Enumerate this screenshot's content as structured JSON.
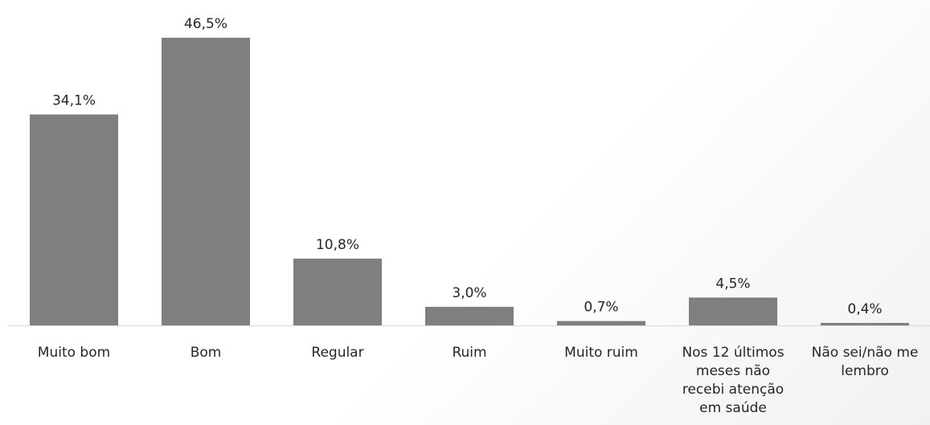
{
  "chart_data": {
    "type": "bar",
    "categories": [
      "Muito bom",
      "Bom",
      "Regular",
      "Ruim",
      "Muito ruim",
      "Nos 12 últimos meses não recebi atenção em saúde",
      "Não sei/não me lembro"
    ],
    "category_lines": [
      [
        "Muito bom"
      ],
      [
        "Bom"
      ],
      [
        "Regular"
      ],
      [
        "Ruim"
      ],
      [
        "Muito ruim"
      ],
      [
        "Nos 12 últimos",
        "meses não",
        "recebi atenção",
        "em saúde"
      ],
      [
        "Não sei/não me",
        "lembro"
      ]
    ],
    "values": [
      34.1,
      46.5,
      10.8,
      3.0,
      0.7,
      4.5,
      0.4
    ],
    "data_labels": [
      "34,1%",
      "46,5%",
      "10,8%",
      "3,0%",
      "0,7%",
      "4,5%",
      "0,4%"
    ],
    "title": "",
    "xlabel": "",
    "ylabel": "",
    "ylim": [
      0,
      46.5
    ],
    "grid": false,
    "legend": "none",
    "bar_color": "#7f7f7f",
    "text_color": "#262626"
  }
}
